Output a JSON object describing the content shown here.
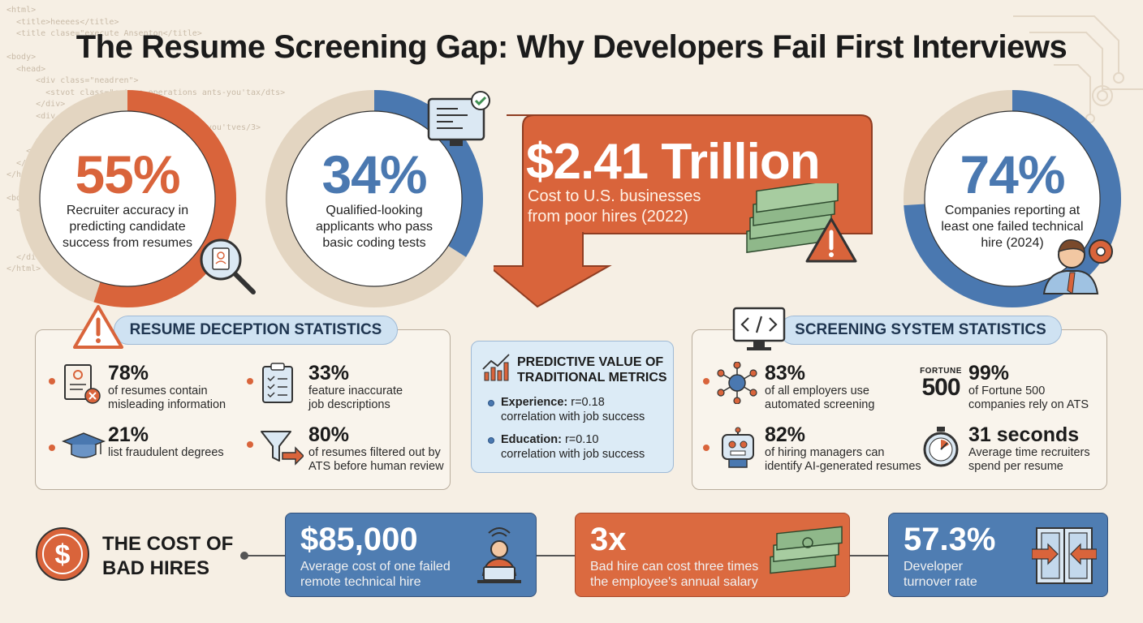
{
  "title": "The Resume Screening Gap: Why Developers Fail First Interviews",
  "background_code": [
    "<html>",
    "  <title>heeees</title>",
    "  <title clase=\"execute Ansenton</title>",
    "",
    "<body>",
    "  <head>",
    "      <div class=\"neadren\">",
    "        <stvot class=\"catvso-operations ants-you'tax/dts>",
    "      </div>",
    "      <div class",
    "        <sio                        ants-you'tves/3>",
    "      </div>",
    "    </div",
    "  </hea",
    "</head",
    "",
    "<body",
    "  <he",
    "    <",
    "",
    "",
    "  </di",
    "</html>"
  ],
  "top_stats": [
    {
      "value": "55%",
      "label": "Recruiter accuracy in predicting candidate success from resumes",
      "fraction": 0.55,
      "color": "#d9643b"
    },
    {
      "value": "34%",
      "label": "Qualified-looking applicants who pass basic coding tests",
      "fraction": 0.34,
      "color": "#4a78b0"
    },
    {
      "value": "74%",
      "label": "Companies reporting at least one failed technical hire (2024)",
      "fraction": 0.74,
      "color": "#4a78b0"
    }
  ],
  "trillion": {
    "value": "$2.41 Trillion",
    "label_line1": "Cost to U.S. businesses",
    "label_line2": "from poor hires (2022)"
  },
  "deception": {
    "heading": "RESUME DECEPTION STATISTICS",
    "stats": [
      {
        "value": "78%",
        "line1": "of resumes contain",
        "line2": "misleading information",
        "icon": "resume-x-icon"
      },
      {
        "value": "33%",
        "line1": "feature inaccurate",
        "line2": "job descriptions",
        "icon": "clipboard-checklist-icon"
      },
      {
        "value": "21%",
        "line1": "list fraudulent degrees",
        "line2": "",
        "icon": "graduation-cap-icon"
      },
      {
        "value": "80%",
        "line1": "of resumes filtered out by",
        "line2": "ATS before human review",
        "icon": "funnel-icon"
      }
    ]
  },
  "metrics": {
    "heading_line1": "PREDICTIVE VALUE OF",
    "heading_line2": "TRADITIONAL METRICS",
    "items": [
      {
        "key": "Experience:",
        "value": " r=0.18",
        "line2": "correlation with job success"
      },
      {
        "key": "Education:",
        "value": " r=0.10",
        "line2": "correlation with job success"
      }
    ]
  },
  "screening": {
    "heading": "SCREENING SYSTEM STATISTICS",
    "fortune_word": "FORTUNE",
    "fortune_num": "500",
    "stats": [
      {
        "value": "83%",
        "line1": "of all employers use",
        "line2": "automated screening",
        "icon": "network-hub-icon"
      },
      {
        "value": "99%",
        "line1": "of Fortune 500",
        "line2": "companies rely on ATS",
        "icon": "fortune-500-logo"
      },
      {
        "value": "82%",
        "line1": "of hiring managers can",
        "line2": "identify AI-generated resumes",
        "icon": "robot-icon"
      },
      {
        "value": "31 seconds",
        "line1": "Average time recruiters",
        "line2": "spend per resume",
        "icon": "stopwatch-icon"
      }
    ]
  },
  "bad_hires": {
    "heading_line1": "THE COST OF",
    "heading_line2": "BAD HIRES",
    "cards": [
      {
        "value": "$85,000",
        "line1": "Average cost of one failed",
        "line2": "remote technical hire"
      },
      {
        "value": "3x",
        "line1": "Bad hire can cost three times",
        "line2": "the employee's annual salary"
      },
      {
        "value": "57.3%",
        "line1": "Developer",
        "line2": "turnover rate"
      }
    ]
  },
  "colors": {
    "orange": "#d9643b",
    "blue": "#4a78b0",
    "beige_track": "#e3d5c1",
    "background": "#f6efe4"
  }
}
